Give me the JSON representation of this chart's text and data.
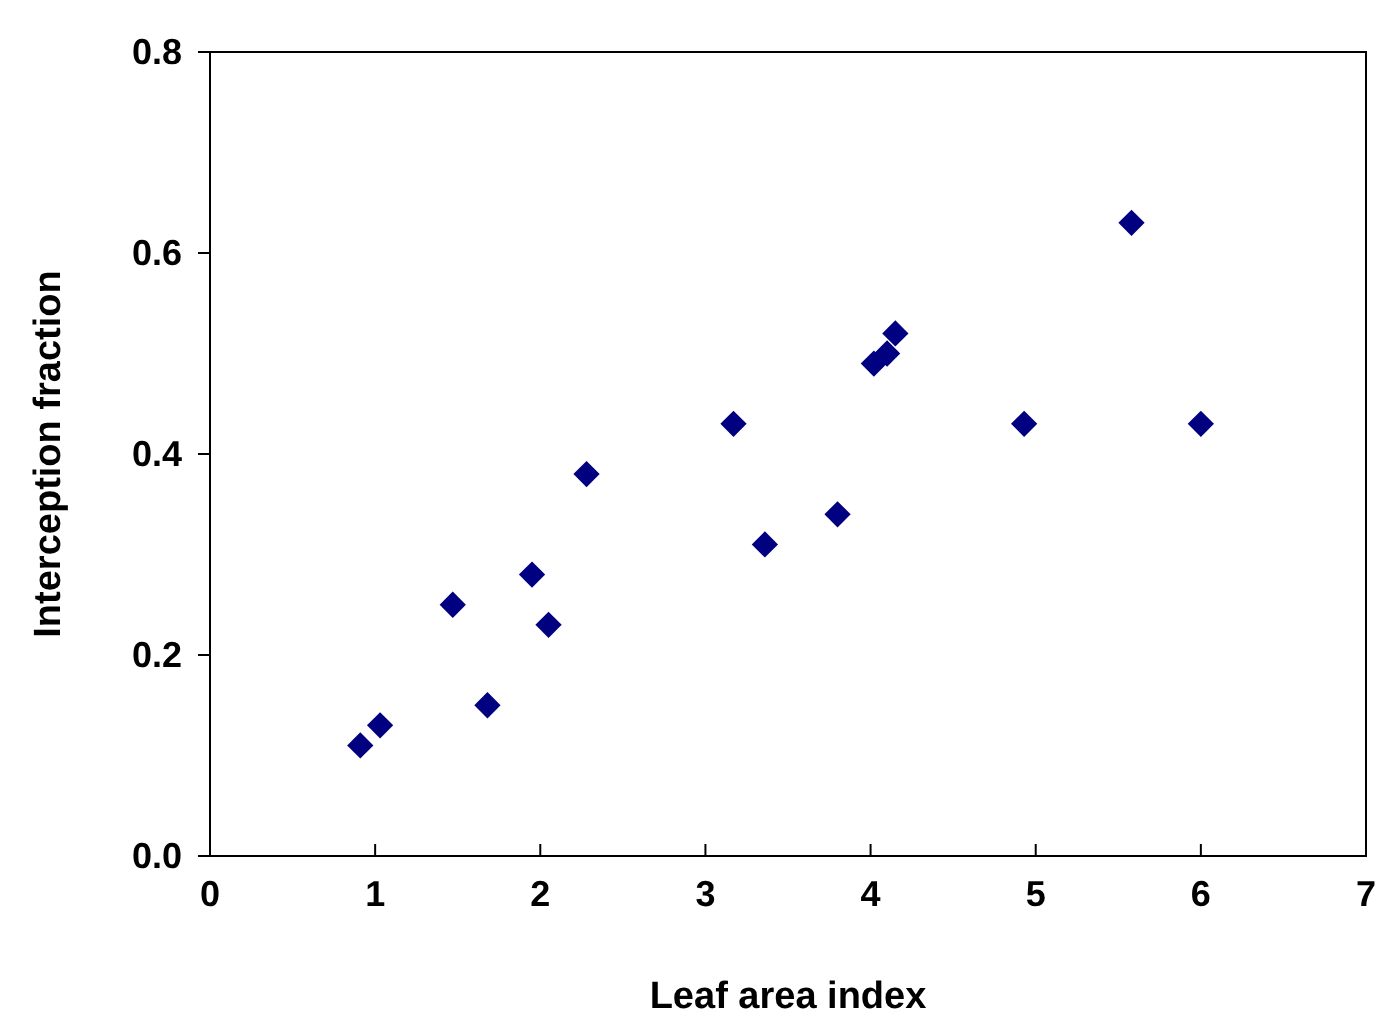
{
  "chart_data": {
    "type": "scatter",
    "xlabel": "Leaf area index",
    "ylabel": "Interception fraction",
    "x": [
      0.91,
      1.03,
      1.47,
      1.68,
      1.95,
      2.05,
      2.28,
      3.17,
      3.36,
      3.8,
      4.02,
      4.1,
      4.15,
      4.93,
      5.58,
      6.0
    ],
    "series": [
      {
        "color": "#000080",
        "values": [
          0.11,
          0.13,
          0.25,
          0.15,
          0.28,
          0.23,
          0.38,
          0.43,
          0.31,
          0.34,
          0.49,
          0.5,
          0.52,
          0.43,
          0.63,
          0.43
        ]
      }
    ],
    "xlim": [
      0,
      7
    ],
    "xticks": [
      0,
      1,
      2,
      3,
      4,
      5,
      6,
      7
    ],
    "ylim": [
      0,
      0.8
    ],
    "yticks": [
      {
        "value": 0,
        "label": "0.0"
      },
      {
        "value": 0.2,
        "label": "0.2"
      },
      {
        "value": 0.4,
        "label": "0.4"
      },
      {
        "value": 0.6,
        "label": "0.6"
      },
      {
        "value": 0.8,
        "label": "0.8"
      }
    ],
    "marker": "diamond"
  }
}
